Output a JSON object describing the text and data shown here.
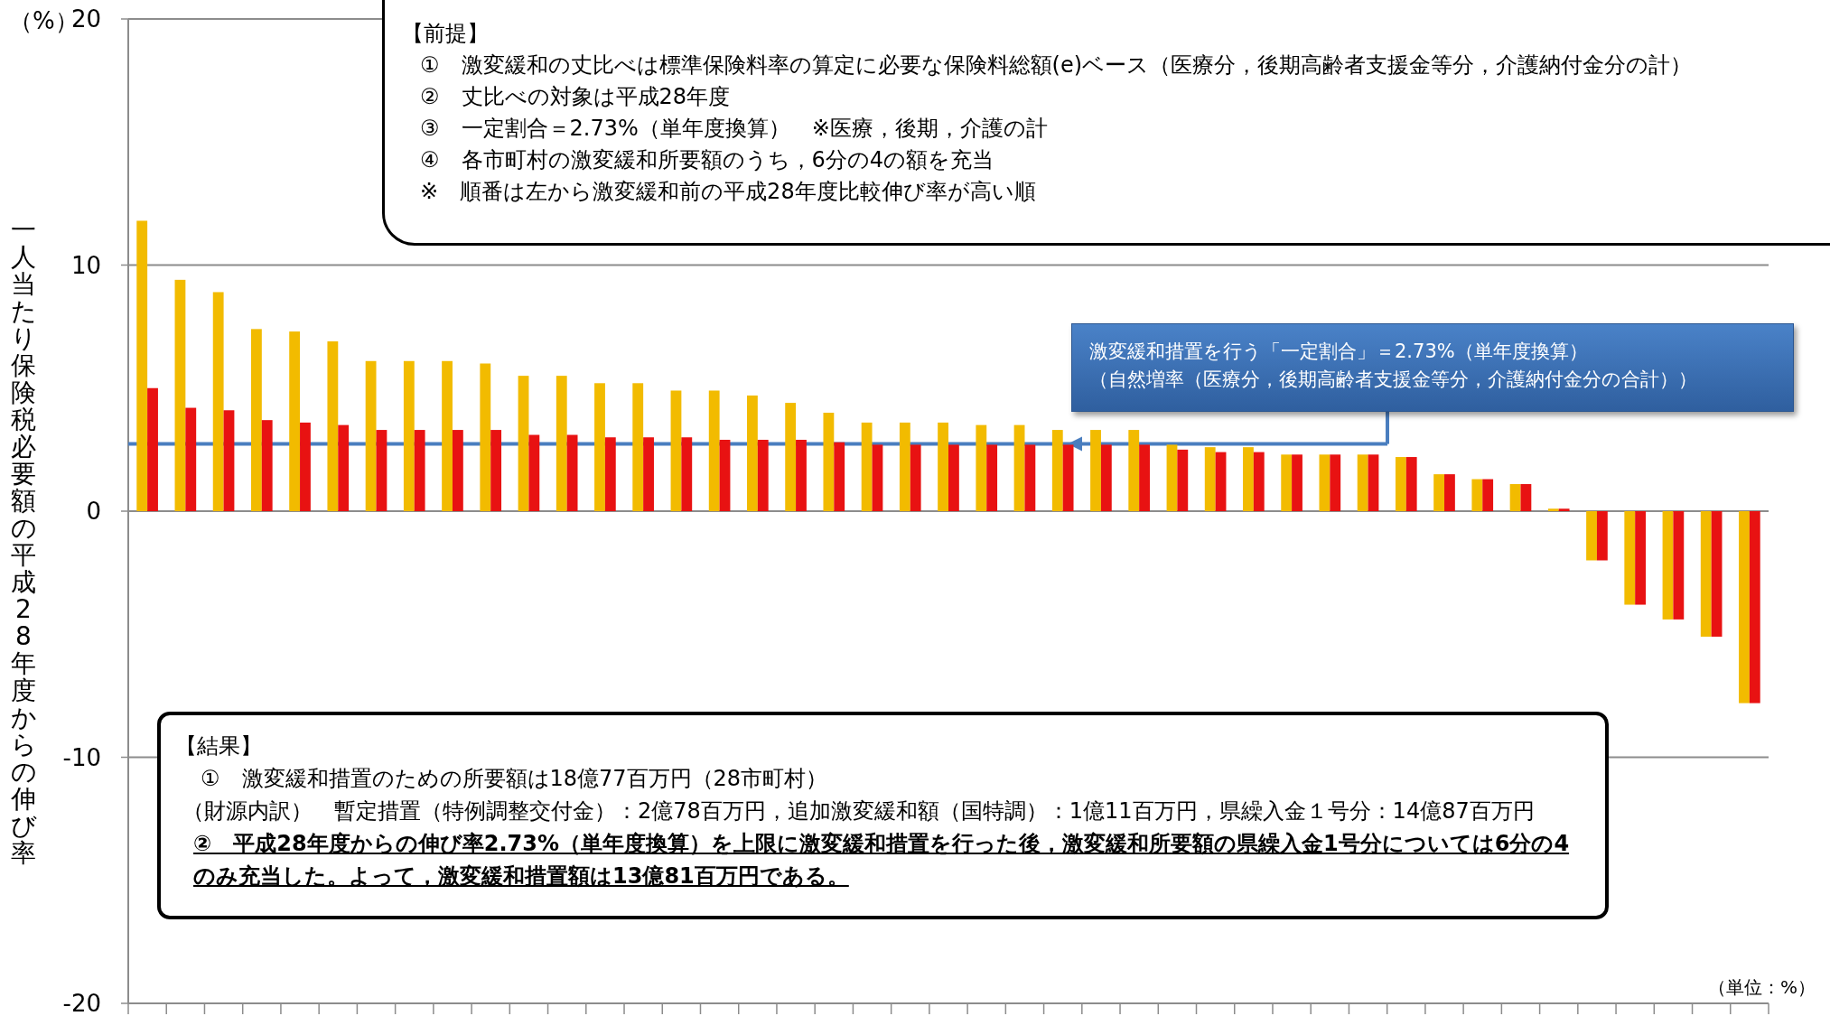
{
  "chart_data": {
    "type": "bar",
    "ylabel": "一人当たり保険税必要額の平成28年度からの伸び率",
    "title": "（%）",
    "categories": [
      null,
      null,
      null,
      null,
      null,
      null,
      null,
      null,
      null,
      null,
      null,
      null,
      null,
      null,
      null,
      null,
      null,
      null,
      null,
      null,
      null,
      null,
      null,
      null,
      null,
      null,
      null,
      null,
      null,
      null,
      null,
      null,
      null,
      null,
      null,
      null,
      null,
      null,
      null,
      null,
      null,
      null,
      null
    ],
    "series": [
      {
        "color": "#f2bb00",
        "values": [
          11.8,
          9.4,
          8.9,
          7.4,
          7.3,
          6.9,
          6.1,
          6.1,
          6.1,
          6.0,
          5.5,
          5.5,
          5.2,
          5.2,
          4.9,
          4.9,
          4.7,
          4.4,
          4.0,
          3.6,
          3.6,
          3.6,
          3.5,
          3.5,
          3.3,
          3.3,
          3.3,
          2.7,
          2.6,
          2.6,
          2.3,
          2.3,
          2.3,
          2.2,
          1.5,
          1.3,
          1.1,
          0.1,
          -2.0,
          -3.8,
          -4.4,
          -5.1,
          -7.8
        ]
      },
      {
        "color": "#e81212",
        "values": [
          5.0,
          4.2,
          4.1,
          3.7,
          3.6,
          3.5,
          3.3,
          3.3,
          3.3,
          3.3,
          3.1,
          3.1,
          3.0,
          3.0,
          3.0,
          2.9,
          2.9,
          2.9,
          2.8,
          2.7,
          2.7,
          2.7,
          2.7,
          2.7,
          2.7,
          2.7,
          2.7,
          2.5,
          2.4,
          2.4,
          2.3,
          2.3,
          2.3,
          2.2,
          1.5,
          1.3,
          1.1,
          0.1,
          -2.0,
          -3.8,
          -4.4,
          -5.1,
          -7.8
        ]
      }
    ],
    "ylim": [
      -20,
      20
    ],
    "yticks": [
      -20,
      -10,
      0,
      10,
      20
    ],
    "grid": "y",
    "ref_lines": [
      {
        "axis": "y",
        "value": 2.73,
        "color": "#4a7ebf"
      }
    ],
    "annotations": [
      "【前提】",
      "①　激変緩和の丈比べは標準保険料率の算定に必要な保険料総額(e)ベース（医療分，後期高齢者支援金等分，介護納付金分の計）",
      "②　丈比べの対象は平成28年度",
      "③　一定割合＝2.73%（単年度換算）　※医療，後期，介護の計",
      "④　各市町村の激変緩和所要額のうち，6分の4の額を充当",
      "※　順番は左から激変緩和前の平成28年度比較伸び率が高い順",
      "【結果】",
      "①　激変緩和措置のための所要額は18億77百万円（28市町村）",
      "（財源内訳）　暫定措置（特例調整交付金）：2億78百万円，追加激変緩和額（国特調）：1億11百万円，県繰入金１号分：14億87百万円",
      "②　平成28年度からの伸び率2.73%（単年度換算）を上限に激変緩和措置を行った後，激変緩和所要額の県繰入金1号分については6分の4のみ充当した。よって，激変緩和措置額は13億81百万円である。",
      "（単位：%）",
      "激変緩和措置を行う「一定割合」＝2.73%（単年度換算）",
      "（自然増率（医療分，後期高齢者支援金等分，介護納付金分の合計））"
    ]
  }
}
